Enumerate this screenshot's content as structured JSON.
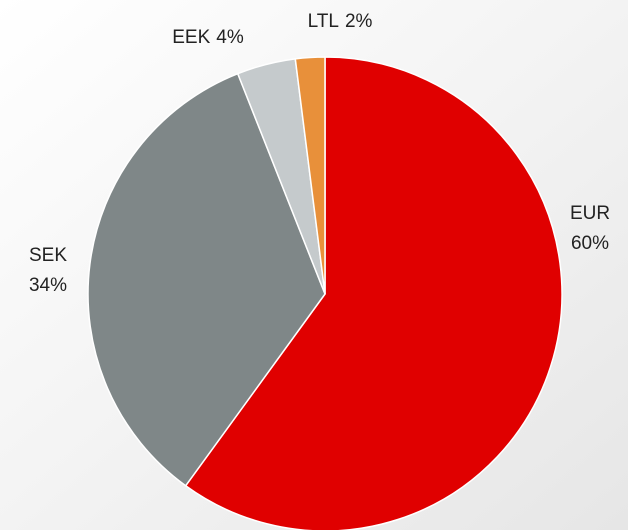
{
  "chart_data": {
    "type": "pie",
    "categories": [
      "EUR",
      "SEK",
      "EEK",
      "LTL"
    ],
    "values": [
      60,
      34,
      4,
      2
    ],
    "value_labels": [
      "60%",
      "34%",
      "4%",
      "2%"
    ],
    "colors": [
      "#e00000",
      "#7f8788",
      "#c5cacc",
      "#e8903a"
    ]
  }
}
